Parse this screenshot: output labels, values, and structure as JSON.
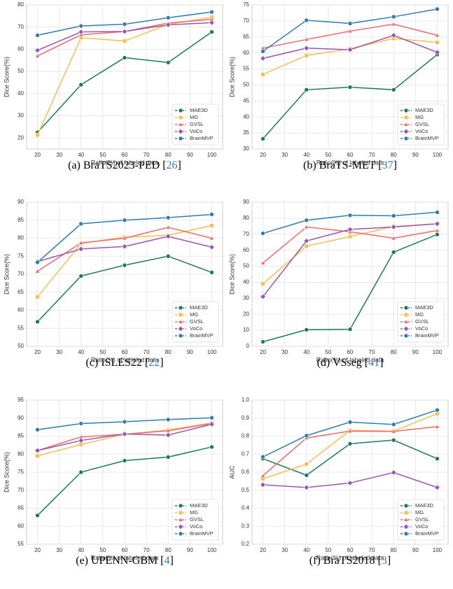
{
  "chart_data": [
    {
      "type": "line",
      "xlabel": "Ratio(%) of labeled data",
      "ylabel": "Dice Score(%)",
      "caption": "(a) BraTS2023-PED [",
      "citation": "26",
      "caption_end": "]",
      "x": [
        20,
        40,
        60,
        80,
        100
      ],
      "xlim": [
        15,
        105
      ],
      "xticks": [
        20,
        30,
        40,
        50,
        60,
        70,
        80,
        90,
        100
      ],
      "ylim": [
        15,
        80
      ],
      "yticks": [
        20,
        30,
        40,
        50,
        60,
        70,
        80
      ],
      "grid": true,
      "legend": "lower right",
      "series": [
        {
          "name": "MAE3D",
          "color": "#1b7b56",
          "marker": "circle",
          "values": [
            22.5,
            44,
            56.2,
            54,
            67.8
          ]
        },
        {
          "name": "MG",
          "color": "#f6bf4f",
          "marker": "square",
          "values": [
            21.3,
            65.2,
            63.7,
            71.2,
            74.5
          ]
        },
        {
          "name": "GVSL",
          "color": "#ee6a6a",
          "marker": "triangle",
          "values": [
            57,
            66.5,
            68,
            71.8,
            73.5
          ]
        },
        {
          "name": "VoCo",
          "color": "#9a55b4",
          "marker": "diamond",
          "values": [
            59.5,
            67.8,
            68,
            71,
            72
          ]
        },
        {
          "name": "BrainMVP",
          "color": "#2e7cb1",
          "marker": "circle",
          "values": [
            66.3,
            70.5,
            71.3,
            74.2,
            76.8
          ]
        }
      ]
    },
    {
      "type": "line",
      "xlabel": "Ratio(%) of labeled data",
      "ylabel": "Dice Score(%)",
      "caption": "(b) BraTS-MET [",
      "citation": "37",
      "caption_end": "]",
      "x": [
        20,
        40,
        60,
        80,
        100
      ],
      "xlim": [
        15,
        105
      ],
      "xticks": [
        20,
        30,
        40,
        50,
        60,
        70,
        80,
        90,
        100
      ],
      "ylim": [
        30,
        75
      ],
      "yticks": [
        30,
        35,
        40,
        45,
        50,
        55,
        60,
        65,
        70,
        75
      ],
      "grid": true,
      "legend": "lower right",
      "series": [
        {
          "name": "MAE3D",
          "color": "#1b7b56",
          "marker": "circle",
          "values": [
            33.2,
            48.5,
            49.3,
            48.5,
            59.5
          ]
        },
        {
          "name": "MG",
          "color": "#f6bf4f",
          "marker": "square",
          "values": [
            53.3,
            59.2,
            61.3,
            64.5,
            63.3
          ]
        },
        {
          "name": "GVSL",
          "color": "#ee6a6a",
          "marker": "triangle",
          "values": [
            61.5,
            64.2,
            66.8,
            69,
            65.5
          ]
        },
        {
          "name": "VoCo",
          "color": "#9a55b4",
          "marker": "diamond",
          "values": [
            58.3,
            61.5,
            61,
            65.5,
            60.2
          ]
        },
        {
          "name": "BrainMVP",
          "color": "#2e7cb1",
          "marker": "circle",
          "values": [
            60.5,
            70.2,
            69.2,
            71.3,
            73.7
          ]
        }
      ]
    },
    {
      "type": "line",
      "xlabel": "Ratio(%) of labeled data",
      "ylabel": "Dice Score(%)",
      "caption": "(c) ISLES22 [",
      "citation": "22",
      "caption_end": "]",
      "x": [
        20,
        40,
        60,
        80,
        100
      ],
      "xlim": [
        15,
        105
      ],
      "xticks": [
        20,
        30,
        40,
        50,
        60,
        70,
        80,
        90,
        100
      ],
      "ylim": [
        50,
        90
      ],
      "yticks": [
        50,
        55,
        60,
        65,
        70,
        75,
        80,
        85,
        90
      ],
      "grid": true,
      "legend": "lower right",
      "series": [
        {
          "name": "MAE3D",
          "color": "#1b7b56",
          "marker": "circle",
          "values": [
            56.8,
            69.5,
            72.5,
            75,
            70.5
          ]
        },
        {
          "name": "MG",
          "color": "#f6bf4f",
          "marker": "square",
          "values": [
            63.7,
            78.5,
            80.3,
            80.8,
            83.5
          ]
        },
        {
          "name": "GVSL",
          "color": "#ee6a6a",
          "marker": "triangle",
          "values": [
            70.8,
            78.7,
            80,
            83,
            80
          ]
        },
        {
          "name": "VoCo",
          "color": "#9a55b4",
          "marker": "diamond",
          "values": [
            73.5,
            77,
            77.7,
            80.5,
            77.5
          ]
        },
        {
          "name": "BrainMVP",
          "color": "#2e7cb1",
          "marker": "circle",
          "values": [
            73.3,
            84,
            85,
            85.7,
            86.6
          ]
        }
      ]
    },
    {
      "type": "line",
      "xlabel": "Ratio(%) of labeled data",
      "ylabel": "Dice Score(%)",
      "caption": "(d) VSseg [",
      "citation": "41",
      "caption_end": "]",
      "x": [
        20,
        40,
        60,
        80,
        100
      ],
      "xlim": [
        15,
        105
      ],
      "xticks": [
        20,
        30,
        40,
        50,
        60,
        70,
        80,
        90,
        100
      ],
      "ylim": [
        0,
        90
      ],
      "yticks": [
        0,
        10,
        20,
        30,
        40,
        50,
        60,
        70,
        80,
        90
      ],
      "grid": true,
      "legend": "lower right",
      "series": [
        {
          "name": "MAE3D",
          "color": "#1b7b56",
          "marker": "circle",
          "values": [
            2.8,
            10.3,
            10.6,
            58.8,
            69.8
          ]
        },
        {
          "name": "MG",
          "color": "#f6bf4f",
          "marker": "square",
          "values": [
            39,
            62.5,
            68.5,
            74.8,
            76.5
          ]
        },
        {
          "name": "GVSL",
          "color": "#ee6a6a",
          "marker": "triangle",
          "values": [
            52,
            74.5,
            71.5,
            67.5,
            72.3
          ]
        },
        {
          "name": "VoCo",
          "color": "#9a55b4",
          "marker": "diamond",
          "values": [
            31,
            65.8,
            73,
            74.5,
            76.5
          ]
        },
        {
          "name": "BrainMVP",
          "color": "#2e7cb1",
          "marker": "circle",
          "values": [
            70.5,
            78.7,
            81.8,
            81.5,
            83.7
          ]
        }
      ]
    },
    {
      "type": "line",
      "xlabel": "Ratio(%) of labeled data",
      "ylabel": "Dice Score(%)",
      "caption": "(e) UPENN-GBM [",
      "citation": "4",
      "caption_end": "]",
      "x": [
        20,
        40,
        60,
        80,
        100
      ],
      "xlim": [
        15,
        105
      ],
      "xticks": [
        20,
        30,
        40,
        50,
        60,
        70,
        80,
        90,
        100
      ],
      "ylim": [
        55,
        95
      ],
      "yticks": [
        55,
        60,
        65,
        70,
        75,
        80,
        85,
        90,
        95
      ],
      "grid": true,
      "legend": "lower right",
      "series": [
        {
          "name": "MAE3D",
          "color": "#1b7b56",
          "marker": "circle",
          "values": [
            63,
            75,
            78.2,
            79.2,
            82
          ]
        },
        {
          "name": "MG",
          "color": "#f6bf4f",
          "marker": "square",
          "values": [
            79.5,
            82.7,
            85.5,
            86.7,
            88.7
          ]
        },
        {
          "name": "GVSL",
          "color": "#ee6a6a",
          "marker": "triangle",
          "values": [
            81,
            84.8,
            85.5,
            86.5,
            88.5
          ]
        },
        {
          "name": "VoCo",
          "color": "#9a55b4",
          "marker": "diamond",
          "values": [
            81,
            83.8,
            85.6,
            85.3,
            88.3
          ]
        },
        {
          "name": "BrainMVP",
          "color": "#2e7cb1",
          "marker": "circle",
          "values": [
            86.8,
            88.5,
            89,
            89.6,
            90.1
          ]
        }
      ]
    },
    {
      "type": "line",
      "xlabel": "Ratio(%) of labeled data",
      "ylabel": "AUC",
      "caption": "(f) BraTS2018 [",
      "citation": "3",
      "caption_end": "]",
      "x": [
        20,
        40,
        60,
        80,
        100
      ],
      "xlim": [
        15,
        105
      ],
      "xticks": [
        20,
        30,
        40,
        50,
        60,
        70,
        80,
        90,
        100
      ],
      "ylim": [
        0.2,
        1.0
      ],
      "yticks": [
        0.2,
        0.3,
        0.4,
        0.5,
        0.6,
        0.7,
        0.8,
        0.9,
        {
          "value": 1,
          "label": "1.0"
        }
      ],
      "grid": true,
      "legend": "lower right",
      "series": [
        {
          "name": "MAE3D",
          "color": "#1b7b56",
          "marker": "circle",
          "values": [
            0.675,
            0.583,
            0.758,
            0.778,
            0.675
          ]
        },
        {
          "name": "MG",
          "color": "#f6bf4f",
          "marker": "square",
          "values": [
            0.563,
            0.645,
            0.832,
            0.828,
            0.925
          ]
        },
        {
          "name": "GVSL",
          "color": "#ee6a6a",
          "marker": "triangle",
          "values": [
            0.58,
            0.79,
            0.828,
            0.826,
            0.853
          ]
        },
        {
          "name": "VoCo",
          "color": "#9a55b4",
          "marker": "diamond",
          "values": [
            0.53,
            0.515,
            0.54,
            0.598,
            0.515
          ]
        },
        {
          "name": "BrainMVP",
          "color": "#2e7cb1",
          "marker": "circle",
          "values": [
            0.685,
            0.803,
            0.878,
            0.865,
            0.945
          ]
        }
      ]
    }
  ]
}
